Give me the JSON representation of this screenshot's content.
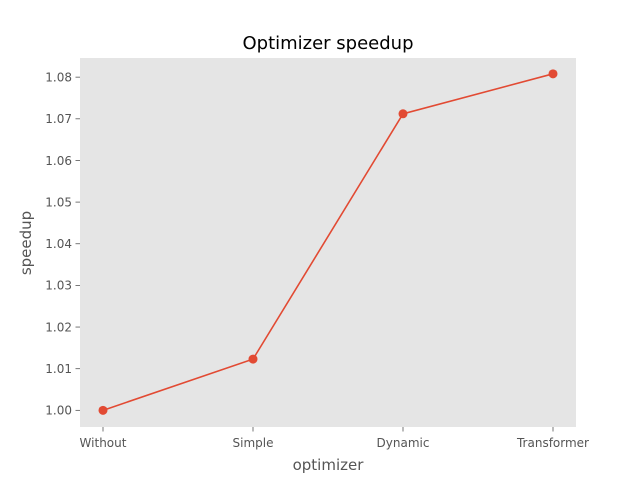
{
  "chart_data": {
    "type": "line",
    "title": "Optimizer speedup",
    "xlabel": "optimizer",
    "ylabel": "speedup",
    "categories": [
      "Without",
      "Simple",
      "Dynamic",
      "Transformer"
    ],
    "series": [
      {
        "values": [
          1.0,
          1.0123,
          1.0712,
          1.0808
        ]
      }
    ],
    "ylim": [
      0.996,
      1.0846
    ],
    "yticks": [
      "1.00",
      "1.01",
      "1.02",
      "1.03",
      "1.04",
      "1.05",
      "1.06",
      "1.07",
      "1.08"
    ],
    "grid": false,
    "legend": "none"
  },
  "colors": {
    "line": "#e24a33",
    "plot_background": "#e5e5e5"
  }
}
